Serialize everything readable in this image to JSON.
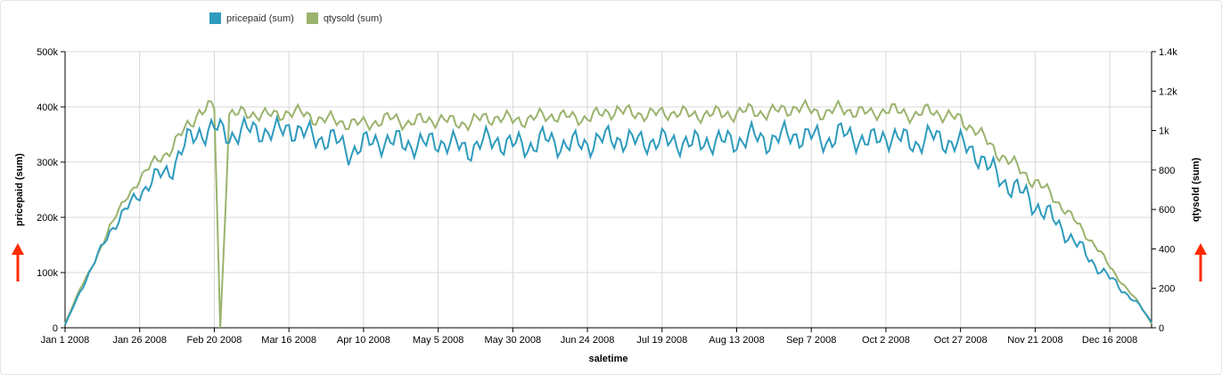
{
  "colors": {
    "pricepaid": "#2e9bbd",
    "qtysold": "#9ab36d",
    "arrow": "#ff2a00",
    "grid": "#d8d8d8",
    "axis": "#000000"
  },
  "legend": [
    {
      "label": "pricepaid (sum)",
      "color": "#2e9bbd"
    },
    {
      "label": "qtysold (sum)",
      "color": "#9ab36d"
    }
  ],
  "chart_data": {
    "type": "line",
    "xlabel": "saletime",
    "ylabel_left": "pricepaid (sum)",
    "ylabel_right": "qtysold (sum)",
    "x_ticks": [
      "Jan 1 2008",
      "Jan 26 2008",
      "Feb 20 2008",
      "Mar 16 2008",
      "Apr 10 2008",
      "May 5 2008",
      "May 30 2008",
      "Jun 24 2008",
      "Jul 19 2008",
      "Aug 13 2008",
      "Sep 7 2008",
      "Oct 2 2008",
      "Oct 27 2008",
      "Nov 21 2008",
      "Dec 16 2008"
    ],
    "y_left_ticks": [
      {
        "v": 0,
        "label": "0"
      },
      {
        "v": 100000,
        "label": "100k"
      },
      {
        "v": 200000,
        "label": "200k"
      },
      {
        "v": 300000,
        "label": "300k"
      },
      {
        "v": 400000,
        "label": "400k"
      },
      {
        "v": 500000,
        "label": "500k"
      }
    ],
    "y_right_ticks": [
      {
        "v": 0,
        "label": "0"
      },
      {
        "v": 200,
        "label": "200"
      },
      {
        "v": 400,
        "label": "400"
      },
      {
        "v": 600,
        "label": "600"
      },
      {
        "v": 800,
        "label": "800"
      },
      {
        "v": 1000,
        "label": "1k"
      },
      {
        "v": 1200,
        "label": "1.2k"
      },
      {
        "v": 1400,
        "label": "1.4k"
      }
    ],
    "ylim_left": [
      0,
      500000
    ],
    "ylim_right": [
      0,
      1400
    ],
    "x_days": 365,
    "grid": true,
    "series": [
      {
        "name": "pricepaid (sum)",
        "axis": "left",
        "x": [
          0,
          5,
          10,
          15,
          20,
          25,
          30,
          35,
          40,
          45,
          50,
          52,
          55,
          60,
          65,
          70,
          75,
          80,
          85,
          90,
          95,
          100,
          105,
          110,
          115,
          120,
          125,
          130,
          135,
          140,
          145,
          150,
          155,
          160,
          165,
          170,
          175,
          180,
          185,
          190,
          195,
          200,
          205,
          210,
          215,
          220,
          225,
          230,
          235,
          240,
          245,
          250,
          255,
          260,
          265,
          270,
          275,
          280,
          285,
          290,
          295,
          300,
          305,
          310,
          315,
          320,
          325,
          330,
          335,
          340,
          345,
          350,
          355,
          360,
          364
        ],
        "values": [
          5000,
          65000,
          120000,
          175000,
          210000,
          245000,
          270000,
          285000,
          330000,
          355000,
          360000,
          355000,
          350000,
          355000,
          360000,
          350000,
          365000,
          350000,
          345000,
          340000,
          320000,
          330000,
          340000,
          335000,
          335000,
          330000,
          340000,
          330000,
          325000,
          335000,
          340000,
          330000,
          330000,
          340000,
          335000,
          330000,
          335000,
          340000,
          345000,
          335000,
          340000,
          335000,
          340000,
          330000,
          340000,
          335000,
          340000,
          345000,
          340000,
          345000,
          350000,
          345000,
          340000,
          350000,
          345000,
          335000,
          350000,
          340000,
          335000,
          345000,
          340000,
          330000,
          320000,
          285000,
          265000,
          245000,
          225000,
          200000,
          175000,
          145000,
          115000,
          90000,
          65000,
          40000,
          10000
        ]
      },
      {
        "name": "qtysold (sum)",
        "axis": "right",
        "x": [
          0,
          5,
          10,
          15,
          20,
          25,
          30,
          35,
          40,
          45,
          50,
          52,
          55,
          60,
          65,
          70,
          75,
          80,
          85,
          90,
          95,
          100,
          105,
          110,
          115,
          120,
          125,
          130,
          135,
          140,
          145,
          150,
          155,
          160,
          165,
          170,
          175,
          180,
          185,
          190,
          195,
          200,
          205,
          210,
          215,
          220,
          225,
          230,
          235,
          240,
          245,
          250,
          255,
          260,
          265,
          270,
          275,
          280,
          285,
          290,
          295,
          300,
          305,
          310,
          315,
          320,
          325,
          330,
          335,
          340,
          345,
          350,
          355,
          360,
          364
        ],
        "values": [
          20,
          200,
          330,
          520,
          640,
          760,
          840,
          900,
          1000,
          1100,
          1120,
          0,
          1090,
          1080,
          1090,
          1070,
          1100,
          1080,
          1060,
          1050,
          1040,
          1030,
          1050,
          1060,
          1040,
          1050,
          1060,
          1040,
          1040,
          1060,
          1070,
          1050,
          1060,
          1070,
          1080,
          1060,
          1070,
          1080,
          1110,
          1080,
          1090,
          1080,
          1100,
          1070,
          1090,
          1080,
          1090,
          1100,
          1090,
          1100,
          1120,
          1100,
          1090,
          1110,
          1100,
          1080,
          1110,
          1090,
          1080,
          1100,
          1080,
          1050,
          1010,
          920,
          860,
          800,
          740,
          680,
          600,
          510,
          420,
          310,
          210,
          120,
          20
        ]
      }
    ]
  }
}
